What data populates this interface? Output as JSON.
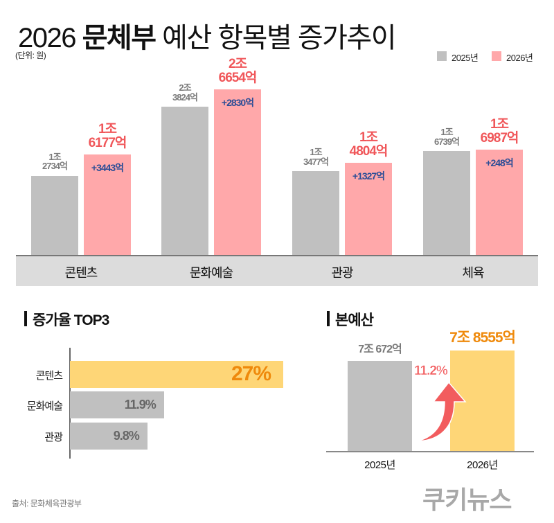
{
  "header": {
    "title_year": "2026",
    "title_bold": "문체부",
    "title_rest": "예산 항목별 증가추이",
    "unit": "(단위: 원)"
  },
  "colors": {
    "gray_bar": "#c0c0c0",
    "pink_bar": "#ffa8aa",
    "yellow_bar": "#fed677",
    "red_text": "#f0575a",
    "blue_text": "#2b4d96",
    "orange_text": "#ef8a0c",
    "gray_text": "#7a7a7a",
    "strip_bg": "#dcdcdc",
    "arrow": "#f25c5e"
  },
  "chart_data": [
    {
      "type": "bar",
      "title": "2026 문체부 예산 항목별 증가추이",
      "unit": "(단위: 원)",
      "legend": [
        "2025년",
        "2026년"
      ],
      "legend_position": "top-right",
      "categories": [
        "콘텐츠",
        "문화예술",
        "관광",
        "체육"
      ],
      "series": [
        {
          "name": "2025년",
          "values_eok": [
            12734,
            23824,
            13477,
            16739
          ],
          "labels": [
            [
              "1조",
              "2734억"
            ],
            [
              "2조",
              "3824억"
            ],
            [
              "1조",
              "3477억"
            ],
            [
              "1조",
              "6739억"
            ]
          ]
        },
        {
          "name": "2026년",
          "values_eok": [
            16177,
            26654,
            14804,
            16987
          ],
          "labels": [
            [
              "1조",
              "6177억"
            ],
            [
              "2조",
              "6654억"
            ],
            [
              "1조",
              "4804억"
            ],
            [
              "1조",
              "6987억"
            ]
          ]
        }
      ],
      "differences": [
        "+3443억",
        "+2830억",
        "+1327억",
        "+248억"
      ],
      "ylim_eok": [
        0,
        30000
      ]
    },
    {
      "type": "bar",
      "orientation": "horizontal",
      "title": "증가율 TOP3",
      "categories": [
        "콘텐츠",
        "문화예술",
        "관광"
      ],
      "values": [
        27,
        11.9,
        9.8
      ],
      "labels": [
        "27%",
        "11.9%",
        "9.8%"
      ],
      "xlim": [
        0,
        28
      ]
    },
    {
      "type": "bar",
      "title": "본예산",
      "categories": [
        "2025년",
        "2026년"
      ],
      "values_eok": [
        70672,
        78555
      ],
      "labels": [
        "7조 672억",
        "7조 8555억"
      ],
      "growth_label": "11.2%",
      "ylim_eok": [
        0,
        100000
      ]
    }
  ],
  "footer": {
    "source": "출처: 문화체육관광부",
    "logo": "쿠키뉴스"
  }
}
